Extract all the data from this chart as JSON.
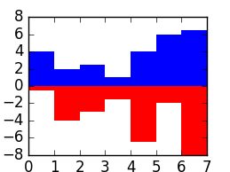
{
  "x": [
    0,
    1,
    2,
    3,
    4,
    5,
    6
  ],
  "positive": [
    4,
    2,
    2.5,
    1,
    4,
    6,
    6.5
  ],
  "negative": [
    -0.5,
    -4,
    -3,
    -1.5,
    -6.5,
    -2,
    -8
  ],
  "bar_width": 1.0,
  "pos_color": "blue",
  "neg_color": "red",
  "xlim": [
    0,
    7
  ],
  "ylim": [
    -8,
    8
  ],
  "yticks": [
    -8,
    -6,
    -4,
    -2,
    0,
    2,
    4,
    6,
    8
  ],
  "xticks": [
    0,
    1,
    2,
    3,
    4,
    5,
    6,
    7
  ],
  "figsize": [
    2.59,
    1.94
  ],
  "dpi": 100
}
